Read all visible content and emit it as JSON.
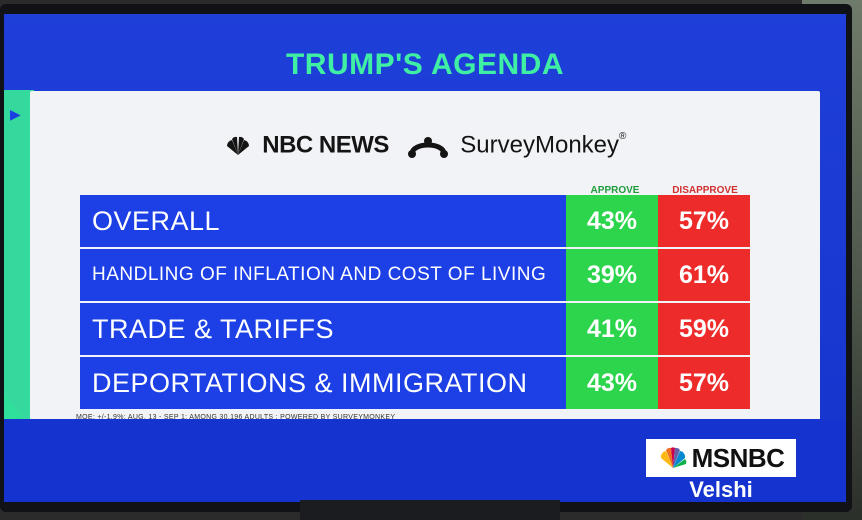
{
  "headline": "TRUMP'S AGENDA",
  "logos": {
    "nbc": "NBC NEWS",
    "survey": "SurveyMonkey",
    "survey_mark": "®"
  },
  "columns": {
    "approve": "APPROVE",
    "disapprove": "DISAPPROVE"
  },
  "rows": [
    {
      "label": "OVERALL",
      "approve": "43%",
      "disapprove": "57%"
    },
    {
      "label": "HANDLING OF INFLATION AND COST OF LIVING",
      "approve": "39%",
      "disapprove": "61%"
    },
    {
      "label": "TRADE & TARIFFS",
      "approve": "41%",
      "disapprove": "59%"
    },
    {
      "label": "DEPORTATIONS & IMMIGRATION",
      "approve": "43%",
      "disapprove": "57%"
    }
  ],
  "footnote": "MOE: +/-1.9%; AUG. 13 - SEP 1; AMONG 30,196 ADULTS ; POWERED BY SURVEYMONKEY",
  "network": {
    "name": "MSNBC",
    "show": "Velshi"
  },
  "colors": {
    "headline": "#3ff0a4",
    "approve": "#2dd54c",
    "disapprove": "#ee2b2b",
    "label_bg": "#1c40e6"
  }
}
